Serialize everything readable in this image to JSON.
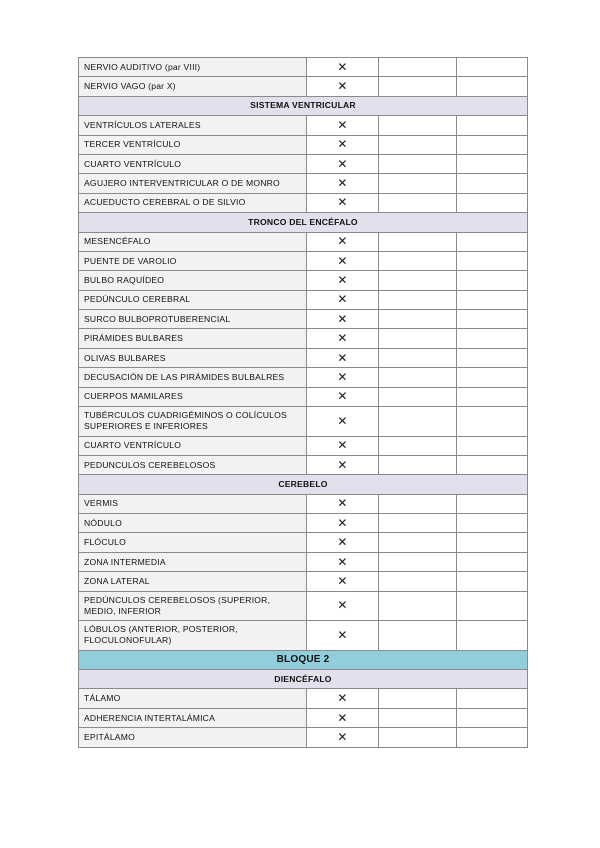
{
  "mark": "✕",
  "rows": [
    {
      "type": "item",
      "label": "NERVIO AUDITIVO (par VIII)",
      "checked": true
    },
    {
      "type": "item",
      "label": "NERVIO VAGO (par X)",
      "checked": true
    },
    {
      "type": "section",
      "label": "SISTEMA VENTRICULAR"
    },
    {
      "type": "item",
      "label": "VENTRÍCULOS LATERALES",
      "checked": true
    },
    {
      "type": "item",
      "label": "TERCER VENTRÍCULO",
      "checked": true
    },
    {
      "type": "item",
      "label": "CUARTO VENTRÍCULO",
      "checked": true
    },
    {
      "type": "item",
      "label": "AGUJERO INTERVENTRICULAR O DE MONRO",
      "checked": true
    },
    {
      "type": "item",
      "label": "ACUEDUCTO CEREBRAL O DE SILVIO",
      "checked": true
    },
    {
      "type": "section",
      "label": "TRONCO DEL ENCÉFALO"
    },
    {
      "type": "item",
      "label": "MESENCÉFALO",
      "checked": true
    },
    {
      "type": "item",
      "label": "PUENTE DE VAROLIO",
      "checked": true
    },
    {
      "type": "item",
      "label": "BULBO RAQUÍDEO",
      "checked": true
    },
    {
      "type": "item",
      "label": "PEDÚNCULO CEREBRAL",
      "checked": true
    },
    {
      "type": "item",
      "label": "SURCO BULBOPROTUBERENCIAL",
      "checked": true
    },
    {
      "type": "item",
      "label": "PIRÁMIDES BULBARES",
      "checked": true
    },
    {
      "type": "item",
      "label": "OLIVAS BULBARES",
      "checked": true
    },
    {
      "type": "item",
      "label": "DECUSACIÓN DE LAS PIRÁMIDES BULBALRES",
      "checked": true
    },
    {
      "type": "item",
      "label": "CUERPOS MAMILARES",
      "checked": true
    },
    {
      "type": "item2",
      "label": "TUBÉRCULOS CUADRIGÉMINOS O COLÍCULOS SUPERIORES E INFERIORES",
      "checked": true
    },
    {
      "type": "item",
      "label": "CUARTO VENTRÍCULO",
      "checked": true
    },
    {
      "type": "item",
      "label": "PEDUNCULOS CEREBELOSOS",
      "checked": true
    },
    {
      "type": "section",
      "label": "CEREBELO"
    },
    {
      "type": "item",
      "label": "VERMIS",
      "checked": true
    },
    {
      "type": "item",
      "label": "NÓDULO",
      "checked": true
    },
    {
      "type": "item",
      "label": "FLÓCULO",
      "checked": true
    },
    {
      "type": "item",
      "label": "ZONA INTERMEDIA",
      "checked": true
    },
    {
      "type": "item",
      "label": "ZONA LATERAL",
      "checked": true
    },
    {
      "type": "item2",
      "label": "PEDÚNCULOS CEREBELOSOS (SUPERIOR, MEDIO, INFERIOR",
      "checked": true
    },
    {
      "type": "item2",
      "label": "LÓBULOS (ANTERIOR, POSTERIOR, FLOCULONOFULAR)",
      "checked": true
    },
    {
      "type": "block",
      "label": "BLOQUE 2"
    },
    {
      "type": "section",
      "label": "DIENCÉFALO"
    },
    {
      "type": "item",
      "label": "TÁLAMO",
      "checked": true
    },
    {
      "type": "item",
      "label": "ADHERENCIA INTERTALÁMICA",
      "checked": true
    },
    {
      "type": "item",
      "label": "EPITÁLAMO",
      "checked": true
    }
  ]
}
